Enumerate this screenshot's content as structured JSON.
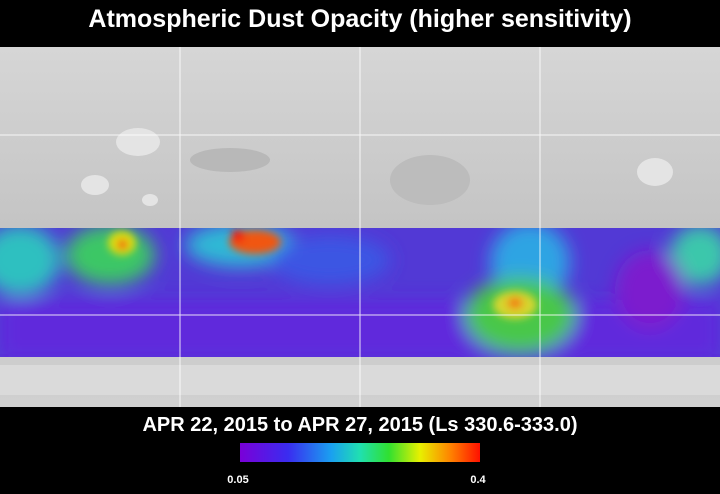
{
  "title": "Atmospheric Dust Opacity (higher sensitivity)",
  "subtitle": "APR 22, 2015 to APR 27, 2015 (Ls 330.6-333.0)",
  "colorbar": {
    "min": 0.05,
    "max": 0.4
  }
}
